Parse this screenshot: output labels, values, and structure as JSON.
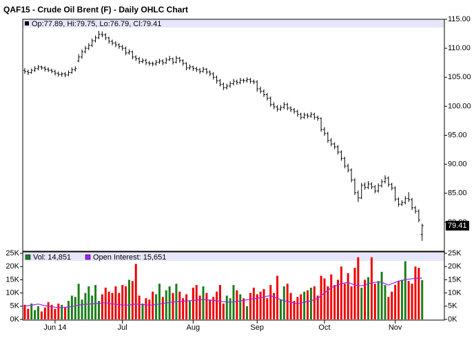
{
  "chart_data": [
    {
      "type": "ohlc",
      "title": "QAF15 - Crude Oil Brent (F) - Daily OHLC Chart",
      "x": [
        0,
        1,
        2,
        3,
        4,
        5,
        6,
        7,
        8,
        9,
        10,
        11,
        12,
        13,
        14,
        15,
        16,
        17,
        18,
        19,
        20,
        21,
        22,
        23,
        24,
        25,
        26,
        27,
        28,
        29,
        30,
        31,
        32,
        33,
        34,
        35,
        36,
        37,
        38,
        39,
        40,
        41,
        42,
        43,
        44,
        45,
        46,
        47,
        48,
        49,
        50,
        51,
        52,
        53,
        54,
        55,
        56,
        57,
        58,
        59,
        60,
        61,
        62,
        63,
        64,
        65,
        66,
        67,
        68,
        69,
        70,
        71,
        72,
        73,
        74,
        75,
        76,
        77,
        78,
        79,
        80,
        81,
        82,
        83,
        84,
        85,
        86,
        87,
        88,
        89,
        90,
        91,
        92,
        93,
        94,
        95,
        96,
        97,
        98,
        99,
        100,
        101,
        102,
        103,
        104,
        105,
        106,
        107,
        108,
        109,
        110,
        111,
        112,
        113,
        114,
        115,
        116,
        117,
        118
      ],
      "xlim": [
        -0.6,
        124.6
      ],
      "xticks": [
        {
          "value": 9,
          "label": "Jun 14"
        },
        {
          "value": 29,
          "label": "Jul"
        },
        {
          "value": 50,
          "label": "Aug"
        },
        {
          "value": 69,
          "label": "Sep"
        },
        {
          "value": 89,
          "label": "Oct"
        },
        {
          "value": 110,
          "label": "Nov"
        }
      ],
      "ylim": [
        75,
        115
      ],
      "yticks": [
        {
          "value": 80,
          "label": "80.00"
        },
        {
          "value": 85,
          "label": "85.00"
        },
        {
          "value": 90,
          "label": "90.00"
        },
        {
          "value": 95,
          "label": "95.00"
        },
        {
          "value": 100,
          "label": "100.00"
        },
        {
          "value": 105,
          "label": "105.00"
        },
        {
          "value": 110,
          "label": "110.00"
        },
        {
          "value": 115,
          "label": "115.00"
        }
      ],
      "series": [
        {
          "name": "Op:77.89, Hi:79.75, Lo:76.79, Cl:79.41",
          "color": "#000000",
          "last_label": "79.41",
          "open": [
            106.2,
            106.0,
            105.8,
            106.2,
            106.5,
            106.8,
            106.6,
            106.4,
            106.2,
            106.0,
            105.7,
            105.5,
            105.6,
            105.4,
            105.8,
            106.3,
            107.8,
            108.5,
            109.4,
            110.0,
            110.5,
            111.3,
            111.8,
            112.4,
            112.3,
            111.8,
            111.2,
            110.9,
            110.6,
            110.3,
            110.0,
            109.2,
            109.4,
            108.5,
            108.2,
            107.7,
            107.9,
            107.5,
            107.4,
            107.3,
            107.6,
            107.8,
            107.5,
            108.0,
            108.2,
            107.6,
            108.3,
            107.9,
            107.4,
            106.6,
            106.8,
            106.5,
            106.3,
            106.0,
            106.4,
            105.9,
            105.6,
            105.0,
            104.4,
            103.8,
            103.2,
            103.5,
            103.9,
            104.3,
            104.1,
            104.5,
            104.4,
            104.6,
            104.3,
            104.2,
            103.0,
            102.6,
            102.0,
            101.4,
            100.3,
            99.9,
            99.5,
            99.8,
            100.3,
            99.7,
            99.4,
            99.1,
            98.6,
            98.1,
            98.5,
            98.3,
            98.6,
            98.1,
            97.9,
            96.0,
            95.3,
            94.1,
            93.5,
            93.0,
            92.1,
            91.0,
            89.7,
            89.0,
            87.3,
            85.1,
            84.2,
            86.4,
            86.0,
            86.6,
            86.1,
            85.4,
            86.3,
            87.0,
            87.6,
            86.5,
            85.9,
            84.0,
            83.1,
            83.4,
            84.1,
            83.9,
            82.5,
            81.9,
            77.89
          ],
          "high": [
            106.6,
            106.3,
            106.5,
            106.9,
            107.1,
            107.0,
            106.9,
            106.7,
            106.5,
            106.3,
            106.0,
            105.9,
            105.9,
            106.2,
            106.7,
            106.9,
            109.0,
            109.8,
            110.4,
            110.9,
            111.7,
            112.2,
            113.0,
            112.9,
            112.6,
            112.0,
            111.5,
            111.2,
            110.9,
            110.6,
            110.3,
            109.8,
            109.6,
            108.8,
            108.5,
            108.3,
            108.2,
            107.8,
            107.7,
            108.0,
            108.2,
            108.1,
            108.4,
            108.7,
            108.4,
            108.7,
            108.5,
            108.1,
            107.6,
            107.2,
            107.0,
            106.8,
            106.6,
            106.8,
            106.6,
            106.2,
            105.9,
            105.3,
            104.7,
            104.1,
            103.9,
            104.3,
            104.7,
            104.6,
            104.9,
            104.8,
            105.0,
            104.9,
            104.6,
            104.5,
            103.4,
            102.9,
            102.3,
            101.7,
            100.7,
            100.2,
            100.2,
            100.7,
            100.6,
            100.0,
            99.7,
            99.4,
            98.9,
            98.9,
            98.8,
            99.0,
            98.9,
            98.4,
            98.1,
            96.4,
            95.6,
            94.5,
            93.8,
            93.3,
            92.4,
            91.3,
            90.1,
            89.3,
            87.6,
            85.5,
            86.8,
            86.9,
            87.1,
            86.9,
            86.4,
            86.7,
            87.4,
            88.1,
            87.9,
            86.8,
            86.2,
            84.3,
            83.8,
            84.5,
            85.2,
            84.2,
            82.8,
            82.2,
            79.75
          ],
          "low": [
            105.6,
            105.4,
            105.6,
            105.9,
            106.2,
            106.3,
            106.0,
            105.9,
            105.7,
            105.3,
            105.1,
            105.1,
            105.0,
            105.2,
            105.6,
            106.0,
            107.6,
            108.2,
            109.1,
            109.7,
            110.2,
            111.0,
            111.6,
            111.9,
            111.4,
            110.8,
            110.5,
            110.2,
            109.9,
            109.6,
            108.8,
            108.9,
            108.1,
            107.8,
            107.3,
            107.4,
            107.1,
            107.0,
            106.9,
            107.0,
            107.3,
            107.1,
            107.3,
            107.8,
            107.2,
            107.4,
            107.5,
            107.0,
            106.2,
            106.3,
            106.1,
            105.9,
            105.6,
            105.8,
            105.5,
            105.2,
            104.6,
            103.9,
            103.4,
            102.8,
            102.9,
            103.2,
            103.6,
            103.7,
            103.8,
            104.0,
            104.1,
            103.9,
            103.8,
            102.5,
            102.2,
            101.6,
            101.0,
            99.9,
            99.5,
            99.1,
            99.2,
            99.5,
            99.3,
            99.0,
            98.7,
            98.2,
            97.7,
            97.8,
            97.9,
            98.0,
            97.7,
            97.5,
            95.6,
            94.9,
            93.7,
            93.1,
            92.6,
            91.7,
            90.6,
            89.3,
            88.6,
            86.9,
            84.7,
            83.5,
            84.0,
            85.6,
            85.7,
            85.7,
            85.0,
            85.1,
            86.0,
            86.7,
            86.1,
            85.5,
            83.6,
            82.7,
            82.8,
            83.1,
            83.5,
            82.1,
            81.5,
            80.0,
            76.79
          ],
          "close": [
            106.0,
            105.8,
            106.2,
            106.5,
            106.8,
            106.6,
            106.4,
            106.2,
            106.0,
            105.7,
            105.5,
            105.6,
            105.4,
            105.8,
            106.3,
            106.5,
            108.5,
            109.4,
            110.0,
            110.5,
            111.3,
            111.8,
            112.4,
            112.3,
            111.8,
            111.2,
            110.9,
            110.6,
            110.3,
            110.0,
            109.2,
            109.4,
            108.5,
            108.2,
            107.7,
            107.9,
            107.5,
            107.4,
            107.3,
            107.6,
            107.8,
            107.5,
            108.0,
            108.2,
            107.6,
            108.3,
            107.9,
            107.4,
            106.6,
            106.8,
            106.5,
            106.3,
            106.0,
            106.4,
            105.9,
            105.6,
            105.0,
            104.4,
            103.8,
            103.2,
            103.5,
            103.9,
            104.3,
            104.1,
            104.5,
            104.4,
            104.6,
            104.3,
            104.2,
            103.0,
            102.6,
            102.0,
            101.4,
            100.3,
            99.9,
            99.5,
            99.8,
            100.3,
            99.7,
            99.4,
            99.1,
            98.6,
            98.1,
            98.5,
            98.3,
            98.6,
            98.1,
            97.9,
            96.0,
            95.3,
            94.1,
            93.5,
            93.0,
            92.1,
            91.0,
            89.7,
            89.0,
            87.3,
            85.1,
            84.2,
            86.4,
            86.0,
            86.6,
            86.1,
            85.4,
            86.3,
            87.0,
            87.6,
            86.5,
            85.9,
            84.0,
            83.1,
            83.4,
            84.1,
            83.9,
            82.5,
            81.9,
            80.4,
            79.41
          ]
        }
      ]
    },
    {
      "type": "volume",
      "up_color": "#1a7f1a",
      "down_color": "#f00000",
      "ylim": [
        0,
        25000
      ],
      "yticks": [
        {
          "value": 0,
          "label": "0K"
        },
        {
          "value": 5000,
          "label": "5K"
        },
        {
          "value": 10000,
          "label": "10K"
        },
        {
          "value": 15000,
          "label": "15K"
        },
        {
          "value": 20000,
          "label": "20K"
        },
        {
          "value": 25000,
          "label": "25K"
        }
      ],
      "series": [
        {
          "name": "Vol: 14,851",
          "color": "#1a7f1a",
          "kind": "bar",
          "values": [
            5500,
            4000,
            6000,
            3500,
            5000,
            3000,
            4500,
            6500,
            5500,
            4000,
            6000,
            5500,
            4500,
            7000,
            9000,
            8500,
            13500,
            7500,
            10000,
            12500,
            9000,
            13000,
            7000,
            9500,
            12000,
            10500,
            10000,
            12500,
            10000,
            13000,
            12500,
            15000,
            14500,
            21000,
            9000,
            6000,
            8000,
            7500,
            10500,
            9500,
            13500,
            8500,
            11000,
            12500,
            10000,
            13500,
            10500,
            8000,
            9500,
            7000,
            12000,
            13000,
            9000,
            12500,
            10000,
            7500,
            8500,
            10500,
            13000,
            6000,
            9000,
            8000,
            13000,
            11000,
            9500,
            8000,
            5000,
            10000,
            12000,
            9500,
            10500,
            11500,
            8000,
            13000,
            10000,
            16500,
            7500,
            12500,
            13500,
            10000,
            7000,
            8500,
            9500,
            10500,
            11000,
            12000,
            12500,
            9000,
            16500,
            15500,
            12500,
            17000,
            13000,
            15000,
            20000,
            13500,
            17500,
            12500,
            19500,
            23500,
            12000,
            15000,
            16000,
            23500,
            13500,
            14500,
            18000,
            13000,
            8500,
            10500,
            13000,
            14500,
            15000,
            22000,
            14500,
            13500,
            20000,
            19500,
            14851
          ]
        },
        {
          "name": "Open Interest: 15,651",
          "color": "#a020f0",
          "kind": "line",
          "values": [
            5000,
            5200,
            5400,
            5600,
            5800,
            5500,
            5200,
            5000,
            4800,
            4600,
            4400,
            4500,
            4600,
            4700,
            4900,
            5100,
            5400,
            5600,
            5700,
            5800,
            5900,
            6000,
            6100,
            6200,
            6300,
            6100,
            5900,
            5700,
            5600,
            5500,
            5400,
            5500,
            5600,
            5800,
            5700,
            5600,
            5500,
            5400,
            5500,
            5600,
            5800,
            6000,
            6200,
            6400,
            6600,
            6700,
            6800,
            6900,
            7000,
            7100,
            7200,
            7300,
            7400,
            7500,
            7400,
            7300,
            7200,
            7000,
            6800,
            6700,
            6600,
            6500,
            6600,
            6800,
            7000,
            7200,
            7400,
            7600,
            7800,
            8000,
            8200,
            8500,
            8800,
            9000,
            8500,
            8000,
            7500,
            7000,
            6800,
            6500,
            6200,
            6000,
            6200,
            6500,
            6800,
            7000,
            7500,
            8000,
            9000,
            10000,
            11000,
            12000,
            12500,
            13000,
            13500,
            13800,
            14000,
            13500,
            13000,
            12800,
            12700,
            13000,
            13500,
            13800,
            14000,
            14200,
            14000,
            13500,
            13000,
            13500,
            14000,
            14500,
            14800,
            15000,
            15200,
            15400,
            15500,
            15600,
            15651
          ]
        }
      ]
    }
  ]
}
